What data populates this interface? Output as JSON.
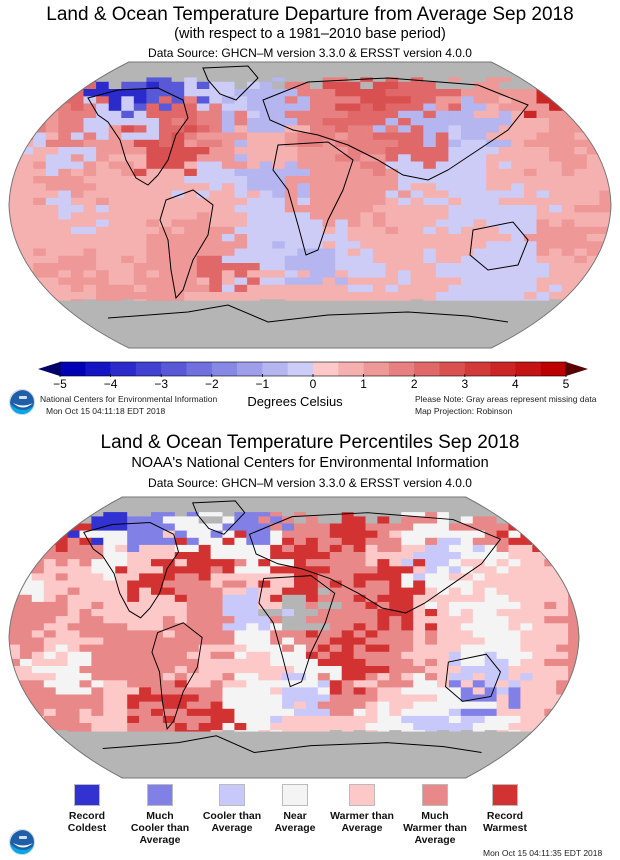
{
  "panel1": {
    "title": "Land & Ocean Temperature Departure from Average Sep 2018",
    "subtitle": "(with respect to a 1981–2010 base period)",
    "source": "Data Source: GHCN–M version 3.3.0 & ERSST version 4.0.0",
    "colorbar": {
      "ticks": [
        "−5",
        "−4",
        "−3",
        "−2",
        "−1",
        "0",
        "1",
        "2",
        "3",
        "4",
        "5"
      ],
      "range": [
        -5,
        5
      ],
      "step": 0.5,
      "colors": [
        "#0000b4",
        "#1515c4",
        "#2b2bcc",
        "#4242d2",
        "#5959d8",
        "#7070de",
        "#8787e4",
        "#9e9eea",
        "#b5b5f0",
        "#ccccf7",
        "#fcc8c8",
        "#f5b0b0",
        "#ee9898",
        "#e78080",
        "#e06868",
        "#d95050",
        "#d23a3a",
        "#cb2626",
        "#c41414",
        "#bd0000"
      ],
      "low_arrow_color": "#00006a",
      "high_arrow_color": "#5a0000",
      "unit_label": "Degrees Celsius"
    },
    "footer_left_line1": "National Centers for Environmental Information",
    "footer_left_line2": "Mon Oct 15 04:11:18 EDT 2018",
    "footer_right_line1": "Please Note: Gray areas represent missing data",
    "footer_right_line2": "Map Projection: Robinson",
    "missing_color": "#b5b5b5"
  },
  "panel2": {
    "title": "Land & Ocean Temperature Percentiles Sep 2018",
    "subtitle": "NOAA's National Centers for Environmental Information",
    "source": "Data Source: GHCN–M version 3.3.0 & ERSST version 4.0.0",
    "legend": [
      {
        "label_1": "Record",
        "label_2": "Coldest",
        "label_3": "",
        "color": "#3232d2"
      },
      {
        "label_1": "Much",
        "label_2": "Cooler than",
        "label_3": "Average",
        "color": "#8080e6"
      },
      {
        "label_1": "Cooler than",
        "label_2": "Average",
        "label_3": "",
        "color": "#c8c8fa"
      },
      {
        "label_1": "Near",
        "label_2": "Average",
        "label_3": "",
        "color": "#f4f4f4"
      },
      {
        "label_1": "Warmer than",
        "label_2": "Average",
        "label_3": "",
        "color": "#fcc8c8"
      },
      {
        "label_1": "Much",
        "label_2": "Warmer than",
        "label_3": "Average",
        "color": "#e88888"
      },
      {
        "label_1": "Record",
        "label_2": "Warmest",
        "label_3": "",
        "color": "#d23232"
      }
    ],
    "timestamp": "Mon Oct 15 04:11:35 EDT 2018",
    "missing_color": "#b5b5b5"
  },
  "chart_data": [
    {
      "type": "heatmap",
      "title": "Land & Ocean Temperature Departure from Average Sep 2018",
      "projection": "Robinson",
      "value_unit": "Degrees Celsius",
      "value_range": [
        -5,
        5
      ],
      "grid_note": "coarse approximate anomaly grid; rows north→south (lat 80 to -80), cols west→east (lon -180 to 180); null = missing",
      "lat_rows": [
        80,
        65,
        50,
        35,
        20,
        5,
        -10,
        -25,
        -40,
        -55,
        -70
      ],
      "lon_cols": [
        -180,
        -150,
        -120,
        -90,
        -60,
        -30,
        0,
        30,
        60,
        90,
        120,
        150,
        180
      ],
      "values": [
        [
          null,
          null,
          null,
          null,
          null,
          null,
          null,
          null,
          null,
          null,
          null,
          null,
          null
        ],
        [
          1.5,
          2.0,
          -4.0,
          -3.0,
          -0.5,
          -1.0,
          1.5,
          2.5,
          2.0,
          1.0,
          1.0,
          3.5,
          1.5
        ],
        [
          1.0,
          1.5,
          -0.5,
          2.0,
          1.5,
          -1.0,
          1.5,
          2.0,
          -1.0,
          -1.0,
          0.5,
          1.0,
          1.0
        ],
        [
          0.5,
          -0.5,
          1.0,
          2.5,
          1.0,
          0.5,
          1.0,
          1.5,
          2.0,
          -0.5,
          0.5,
          1.0,
          0.5
        ],
        [
          0.5,
          1.0,
          0.5,
          0.5,
          -0.5,
          -1.0,
          1.0,
          1.0,
          -0.5,
          -0.5,
          0.5,
          0.5,
          0.5
        ],
        [
          0.5,
          -0.5,
          0.5,
          0.5,
          0.5,
          -0.5,
          1.0,
          1.0,
          0.5,
          -0.5,
          -0.5,
          0.5,
          1.0
        ],
        [
          0.5,
          0.5,
          0.5,
          1.0,
          1.0,
          -0.5,
          -0.5,
          0.5,
          0.5,
          0.5,
          -0.5,
          1.0,
          0.5
        ],
        [
          0.5,
          1.0,
          0.5,
          1.0,
          2.0,
          -0.5,
          -1.0,
          -0.5,
          0.5,
          -0.5,
          -0.5,
          0.5,
          0.5
        ],
        [
          0.5,
          0.5,
          1.0,
          1.0,
          0.5,
          0.5,
          0.5,
          0.5,
          0.5,
          -0.5,
          -0.5,
          0.5,
          0.5
        ],
        [
          null,
          null,
          null,
          0.5,
          -0.5,
          null,
          null,
          null,
          null,
          null,
          null,
          null,
          null
        ],
        [
          null,
          null,
          null,
          null,
          null,
          null,
          null,
          null,
          null,
          null,
          null,
          null,
          null
        ]
      ]
    },
    {
      "type": "heatmap",
      "title": "Land & Ocean Temperature Percentiles Sep 2018",
      "projection": "Robinson",
      "categories": [
        "Record Coldest",
        "Much Cooler than Average",
        "Cooler than Average",
        "Near Average",
        "Warmer than Average",
        "Much Warmer than Average",
        "Record Warmest"
      ],
      "grid_note": "category index 0-6 per cell; rows north→south (lat 80 to -80), cols west→east (lon -180 to 180); null = missing",
      "lat_rows": [
        80,
        65,
        50,
        35,
        20,
        5,
        -10,
        -25,
        -40,
        -55,
        -70
      ],
      "lon_cols": [
        -180,
        -150,
        -120,
        -90,
        -60,
        -30,
        0,
        30,
        60,
        90,
        120,
        150,
        180
      ],
      "values": [
        [
          null,
          null,
          null,
          null,
          null,
          null,
          null,
          null,
          null,
          null,
          null,
          null,
          null
        ],
        [
          5,
          6,
          0,
          1,
          3,
          1,
          5,
          6,
          5,
          3,
          5,
          6,
          5
        ],
        [
          5,
          5,
          3,
          4,
          6,
          3,
          6,
          5,
          4,
          2,
          3,
          4,
          5
        ],
        [
          3,
          4,
          4,
          6,
          5,
          4,
          6,
          5,
          6,
          3,
          4,
          4,
          5
        ],
        [
          5,
          5,
          4,
          4,
          5,
          2,
          null,
          5,
          6,
          4,
          3,
          4,
          5
        ],
        [
          5,
          4,
          5,
          5,
          5,
          3,
          5,
          6,
          5,
          4,
          3,
          4,
          5
        ],
        [
          4,
          3,
          5,
          5,
          4,
          4,
          3,
          6,
          5,
          4,
          2,
          4,
          5
        ],
        [
          5,
          5,
          4,
          6,
          5,
          3,
          2,
          5,
          4,
          3,
          1,
          4,
          5
        ],
        [
          4,
          5,
          4,
          5,
          6,
          3,
          4,
          4,
          3,
          2,
          3,
          4,
          5
        ],
        [
          null,
          null,
          null,
          5,
          4,
          null,
          null,
          null,
          null,
          null,
          null,
          null,
          null
        ],
        [
          null,
          null,
          null,
          null,
          null,
          null,
          null,
          null,
          null,
          null,
          null,
          null,
          null
        ]
      ]
    }
  ]
}
